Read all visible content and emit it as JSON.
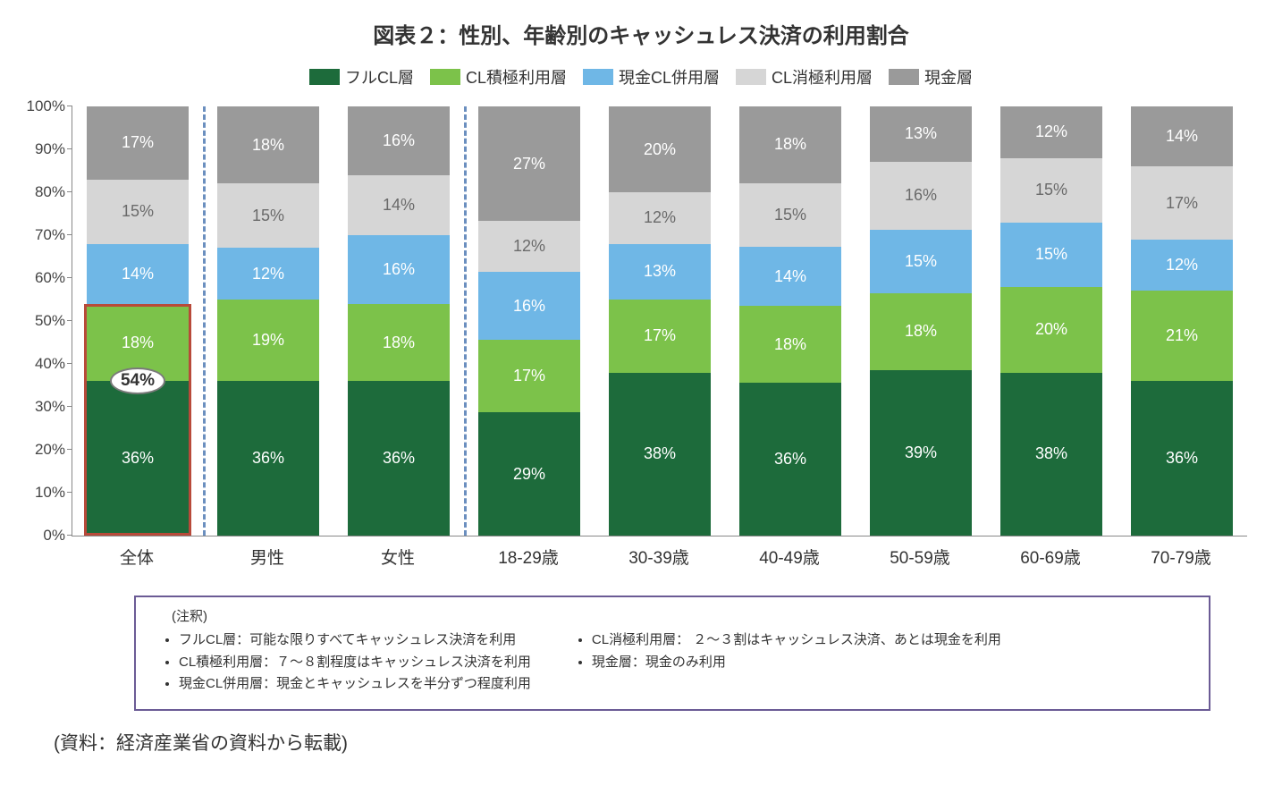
{
  "chart": {
    "title": "図表２：性別、年齢別のキャッシュレス決済の利用割合",
    "type": "stacked-bar-100pct",
    "background_color": "#ffffff",
    "axis_color": "#888888",
    "ylim": [
      0,
      100
    ],
    "ytick_step": 10,
    "ytick_suffix": "%",
    "label_fontsize": 17,
    "title_fontsize": 24,
    "segment_label_fontsize": 18,
    "xlabel_fontsize": 19,
    "series": [
      {
        "key": "full_cl",
        "label": "フルCL層",
        "color": "#1d6b3b",
        "text_color": "#ffffff"
      },
      {
        "key": "active_cl",
        "label": "CL積極利用層",
        "color": "#7cc24a",
        "text_color": "#ffffff"
      },
      {
        "key": "mixed",
        "label": "現金CL併用層",
        "color": "#6fb7e6",
        "text_color": "#ffffff"
      },
      {
        "key": "passive_cl",
        "label": "CL消極利用層",
        "color": "#d6d6d6",
        "text_color": "#6a6a6a"
      },
      {
        "key": "cash",
        "label": "現金層",
        "color": "#9a9a9a",
        "text_color": "#ffffff"
      }
    ],
    "categories": [
      {
        "label": "全体",
        "values": {
          "full_cl": 36,
          "active_cl": 18,
          "mixed": 14,
          "passive_cl": 15,
          "cash": 17
        }
      },
      {
        "label": "男性",
        "values": {
          "full_cl": 36,
          "active_cl": 19,
          "mixed": 12,
          "passive_cl": 15,
          "cash": 18
        }
      },
      {
        "label": "女性",
        "values": {
          "full_cl": 36,
          "active_cl": 18,
          "mixed": 16,
          "passive_cl": 14,
          "cash": 16
        }
      },
      {
        "label": "18-29歳",
        "values": {
          "full_cl": 29,
          "active_cl": 17,
          "mixed": 16,
          "passive_cl": 12,
          "cash": 27
        }
      },
      {
        "label": "30-39歳",
        "values": {
          "full_cl": 38,
          "active_cl": 17,
          "mixed": 13,
          "passive_cl": 12,
          "cash": 20
        }
      },
      {
        "label": "40-49歳",
        "values": {
          "full_cl": 36,
          "active_cl": 18,
          "mixed": 14,
          "passive_cl": 15,
          "cash": 18
        }
      },
      {
        "label": "50-59歳",
        "values": {
          "full_cl": 39,
          "active_cl": 18,
          "mixed": 15,
          "passive_cl": 16,
          "cash": 13
        }
      },
      {
        "label": "60-69歳",
        "values": {
          "full_cl": 38,
          "active_cl": 20,
          "mixed": 15,
          "passive_cl": 15,
          "cash": 12
        }
      },
      {
        "label": "70-79歳",
        "values": {
          "full_cl": 36,
          "active_cl": 21,
          "mixed": 12,
          "passive_cl": 17,
          "cash": 14
        }
      }
    ],
    "group_dividers_after_index": [
      0,
      2
    ],
    "divider_color": "#6b8fbf",
    "highlight": {
      "category_index": 0,
      "from_pct": 0,
      "to_pct": 54,
      "border_color": "#b84a3a",
      "callout_text": "54%",
      "callout_at_pct": 36
    }
  },
  "notes": {
    "title": "(注釈)",
    "border_color": "#6b5b95",
    "left": [
      "フルCL層：可能な限りすべてキャッシュレス決済を利用",
      "CL積極利用層：７～８割程度はキャッシュレス決済を利用",
      "現金CL併用層：現金とキャッシュレスを半分ずつ程度利用"
    ],
    "right": [
      "CL消極利用層： ２～３割はキャッシュレス決済、あとは現金を利用",
      "現金層：現金のみ利用"
    ]
  },
  "source": "(資料：経済産業省の資料から転載)"
}
